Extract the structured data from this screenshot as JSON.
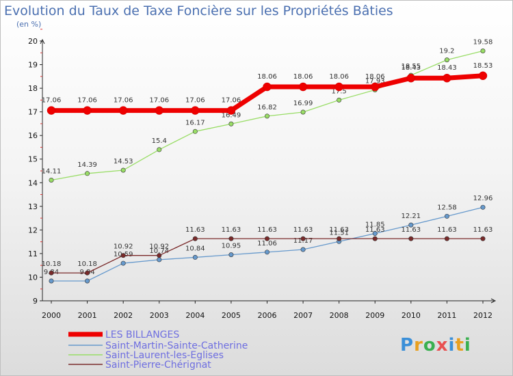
{
  "chart_data": {
    "type": "line",
    "title": "Evolution du Taux de Taxe Foncière sur les Propriétés Bâties",
    "ylabel": "(en %)",
    "xlabel": "",
    "x": [
      "2000",
      "2001",
      "2002",
      "2003",
      "2004",
      "2005",
      "2006",
      "2007",
      "2008",
      "2009",
      "2010",
      "2011",
      "2012"
    ],
    "ylim": [
      9,
      20
    ],
    "yticks": [
      "9",
      "10",
      "11",
      "12",
      "13",
      "14",
      "15",
      "16",
      "17",
      "18",
      "19",
      "20"
    ],
    "series": [
      {
        "name": "LES BILLANGES",
        "color": "#ee0000",
        "values": [
          17.06,
          17.06,
          17.06,
          17.06,
          17.06,
          17.06,
          18.06,
          18.06,
          18.06,
          18.06,
          18.43,
          18.43,
          18.53
        ],
        "labels": [
          "17.06",
          "17.06",
          "17.06",
          "17.06",
          "17.06",
          "17.06",
          "18.06",
          "18.06",
          "18.06",
          "18.06",
          "18.43",
          "18.43",
          "18.53"
        ]
      },
      {
        "name": "Saint-Martin-Sainte-Catherine",
        "color": "#6699cc",
        "values": [
          9.84,
          9.84,
          10.59,
          10.74,
          10.84,
          10.95,
          11.06,
          11.17,
          11.51,
          11.85,
          12.21,
          12.58,
          12.96
        ],
        "labels": [
          "9.84",
          "9.84",
          "10.59",
          "10.74",
          "10.84",
          "10.95",
          "11.06",
          "11.17",
          "11.51",
          "11.85",
          "12.21",
          "12.58",
          "12.96"
        ]
      },
      {
        "name": "Saint-Laurent-les-Eglises",
        "color": "#99dd66",
        "values": [
          14.11,
          14.39,
          14.53,
          15.4,
          16.17,
          16.49,
          16.82,
          16.99,
          17.5,
          17.93,
          18.55,
          19.2,
          19.58
        ],
        "labels": [
          "14.11",
          "14.39",
          "14.53",
          "15.4",
          "16.17",
          "16.49",
          "16.82",
          "16.99",
          "17.5",
          "17.93",
          "18.55",
          "19.2",
          "19.58"
        ]
      },
      {
        "name": "Saint-Pierre-Chérignat",
        "color": "#7a2a2a",
        "values": [
          10.18,
          10.18,
          10.92,
          10.92,
          11.63,
          11.63,
          11.63,
          11.63,
          11.63,
          11.63,
          11.63,
          11.63,
          11.63
        ],
        "labels": [
          "10.18",
          "10.18",
          "10.92",
          "10.92",
          "11.63",
          "11.63",
          "11.63",
          "11.63",
          "11.63",
          "11.63",
          "11.63",
          "11.63",
          "11.63"
        ]
      }
    ],
    "legend_position": "bottom-left",
    "grid": false
  },
  "logo": {
    "letters": [
      "P",
      "r",
      "o",
      "x",
      "i",
      "t",
      "i"
    ],
    "colors": [
      "#3a8fd8",
      "#e8a020",
      "#3ab050",
      "#e85050",
      "#3a8fd8",
      "#e8a020",
      "#3ab050"
    ]
  }
}
